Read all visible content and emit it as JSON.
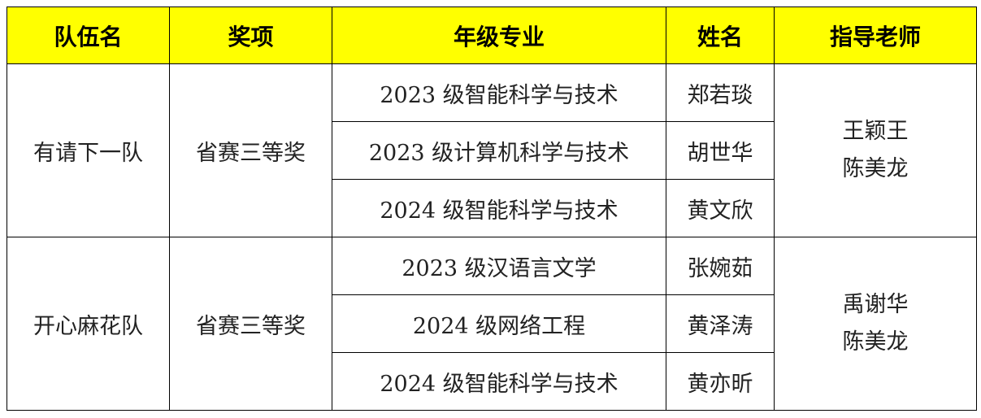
{
  "headers": [
    "队伍名",
    "奖项",
    "年级专业",
    "姓名",
    "指导老师"
  ],
  "teams": [
    {
      "name": "有请下一队",
      "award": "省赛三等奖",
      "members": [
        {
          "major": "2023 级智能科学与技术",
          "name": "郑若琰"
        },
        {
          "major": "2023 级计算机科学与技术",
          "name": "胡世华"
        },
        {
          "major": "2024 级智能科学与技术",
          "name": "黄文欣"
        }
      ],
      "advisors": [
        "王颖王",
        "陈美龙"
      ]
    },
    {
      "name": "开心麻花队",
      "award": "省赛三等奖",
      "members": [
        {
          "major": "2023 级汉语言文学",
          "name": "张婉茹"
        },
        {
          "major": "2024 级网络工程",
          "name": "黄泽涛"
        },
        {
          "major": "2024 级智能科学与技术",
          "name": "黄亦昕"
        }
      ],
      "advisors": [
        "禹谢华",
        "陈美龙"
      ]
    }
  ],
  "colors": {
    "header_bg": "#ffff00"
  }
}
